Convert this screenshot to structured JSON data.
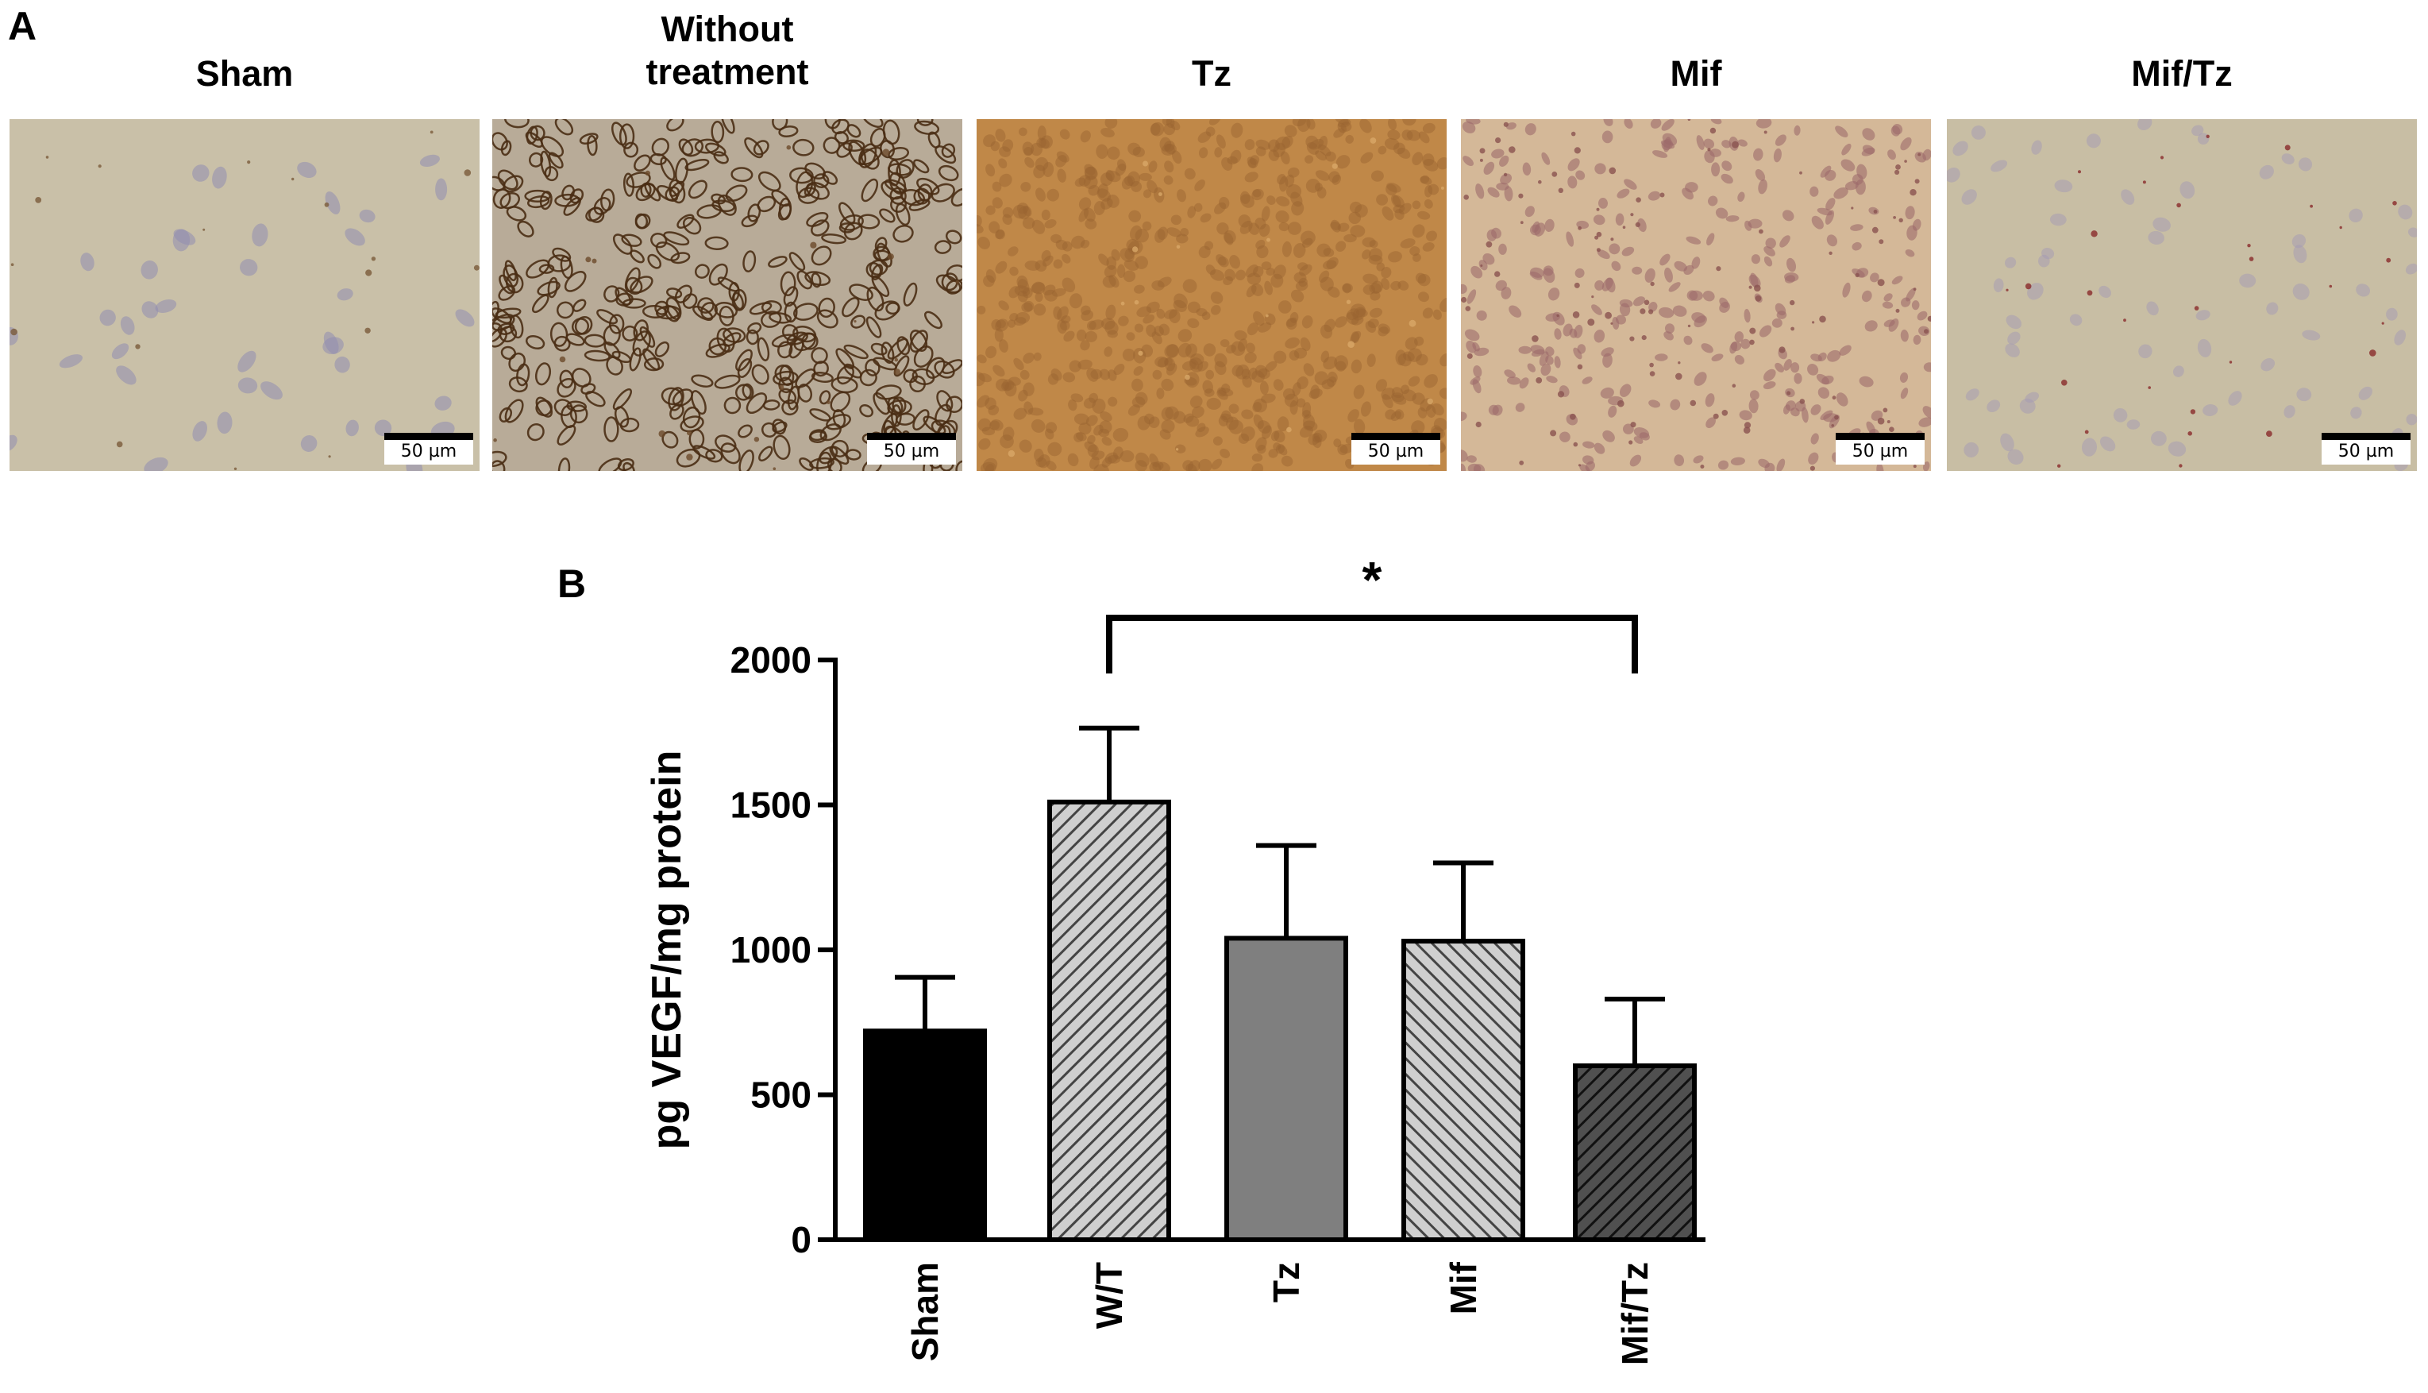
{
  "panel_a": {
    "letter": "A",
    "panels": [
      {
        "label_lines": [
          "Sham"
        ],
        "scale_bar": "50 µm",
        "stain": "negative",
        "bg": "#c9c0a8",
        "cell": "#8f8db0",
        "dot": "#7a5a3a"
      },
      {
        "label_lines": [
          "Without",
          "treatment"
        ],
        "scale_bar": "50 µm",
        "stain": "strong",
        "bg": "#b8ab98",
        "cell": "#4a2e14",
        "dot": "#6b4a2a"
      },
      {
        "label_lines": [
          "Tz"
        ],
        "scale_bar": "50 µm",
        "stain": "diffuse",
        "bg": "#c08848",
        "cell": "#9a6430",
        "dot": "#d8a868"
      },
      {
        "label_lines": [
          "Mif"
        ],
        "scale_bar": "50 µm",
        "stain": "moderate",
        "bg": "#d4b898",
        "cell": "#9c6a6a",
        "dot": "#8a5250"
      },
      {
        "label_lines": [
          "Mif/Tz"
        ],
        "scale_bar": "50 µm",
        "stain": "weak",
        "bg": "#c8bea4",
        "cell": "#a49ab4",
        "dot": "#8a2a2a"
      }
    ]
  },
  "chart_data": {
    "panel_letter": "B",
    "type": "bar",
    "categories": [
      "Sham",
      "W/T",
      "Tz",
      "Mif",
      "Mif/Tz"
    ],
    "values": [
      720,
      1510,
      1040,
      1030,
      600
    ],
    "errors": [
      185,
      255,
      320,
      270,
      230
    ],
    "fills": [
      "solid-black",
      "hatch-light-right",
      "solid-gray",
      "hatch-light-left",
      "hatch-dark-right"
    ],
    "colors": {
      "bar_black": "#000000",
      "bar_gray": "#7f7f7f",
      "hatch_bg_light": "#cfcfcf",
      "hatch_bg_dark": "#505050"
    },
    "xlabel": "",
    "ylabel": "pg VEGF/mg protein",
    "ylim": [
      0,
      2000
    ],
    "yticks": [
      0,
      500,
      1000,
      1500,
      2000
    ],
    "annotations": [
      {
        "text": "*",
        "from": "W/T",
        "to": "Mif/Tz"
      }
    ],
    "grid": false,
    "legend": "none"
  }
}
